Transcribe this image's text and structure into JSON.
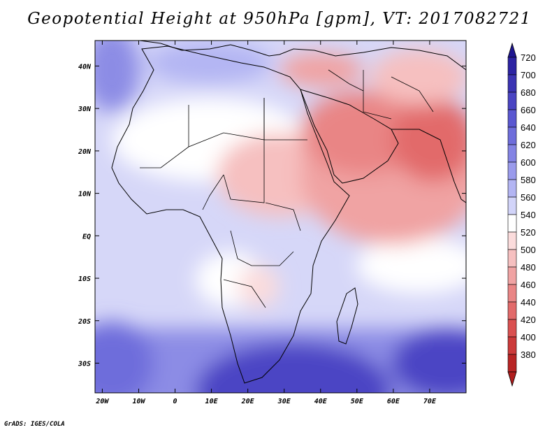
{
  "title": "Geopotential Height at 950hPa [gpm], VT: 2017082721",
  "credit": "GrADS: IGES/COLA",
  "map": {
    "projection": "lat-lon",
    "lon_range": [
      -22,
      80
    ],
    "lat_range": [
      -37,
      46
    ],
    "lon_ticks": [
      {
        "value": -20,
        "label": "20W"
      },
      {
        "value": -10,
        "label": "10W"
      },
      {
        "value": 0,
        "label": "0"
      },
      {
        "value": 10,
        "label": "10E"
      },
      {
        "value": 20,
        "label": "20E"
      },
      {
        "value": 30,
        "label": "30E"
      },
      {
        "value": 40,
        "label": "40E"
      },
      {
        "value": 50,
        "label": "50E"
      },
      {
        "value": 60,
        "label": "60E"
      },
      {
        "value": 70,
        "label": "70E"
      }
    ],
    "lat_ticks": [
      {
        "value": 40,
        "label": "40N"
      },
      {
        "value": 30,
        "label": "30N"
      },
      {
        "value": 20,
        "label": "20N"
      },
      {
        "value": 10,
        "label": "10N"
      },
      {
        "value": 0,
        "label": "EQ"
      },
      {
        "value": -10,
        "label": "10S"
      },
      {
        "value": -20,
        "label": "20S"
      },
      {
        "value": -30,
        "label": "30S"
      }
    ]
  },
  "colorbar": {
    "levels": [
      "720",
      "700",
      "680",
      "660",
      "640",
      "620",
      "600",
      "580",
      "560",
      "540",
      "520",
      "500",
      "480",
      "460",
      "440",
      "420",
      "400",
      "380"
    ],
    "colors": [
      "#2c23a3",
      "#3b33b3",
      "#4a44c3",
      "#5a57d1",
      "#6e6ddb",
      "#8383e4",
      "#9a9bec",
      "#b3b5f3",
      "#d2d4f9",
      "#ffffff",
      "#fbdcdc",
      "#f6c0c0",
      "#f0a3a3",
      "#e98585",
      "#e26a6a",
      "#da5050",
      "#cc3a3a",
      "#b82424"
    ],
    "top_arrow_color": "#1e1690",
    "bottom_arrow_color": "#b01d1d"
  }
}
